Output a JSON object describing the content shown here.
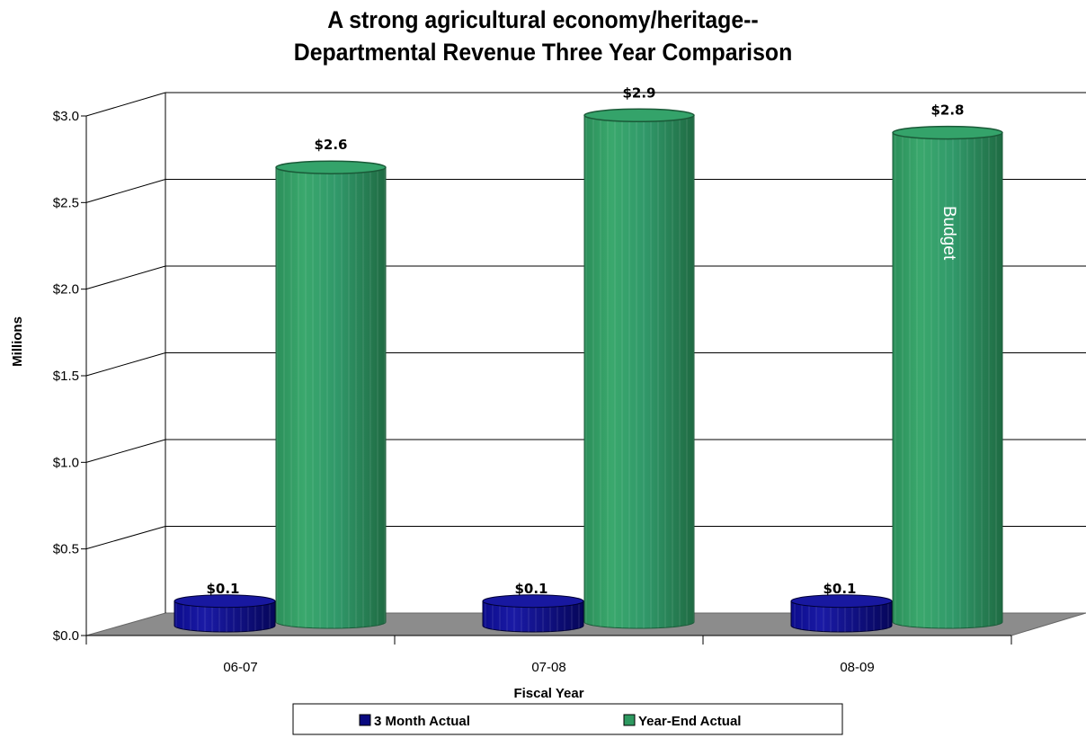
{
  "chart_data": {
    "type": "bar",
    "title_lines": [
      "A strong agricultural economy/heritage--",
      "Departmental Revenue Three Year Comparison"
    ],
    "xlabel": "Fiscal Year",
    "ylabel": "Millions",
    "categories": [
      "06-07",
      "07-08",
      "08-09"
    ],
    "ylim": [
      0,
      3.0
    ],
    "y_ticks": [
      "$0.0",
      "$0.5",
      "$1.0",
      "$1.5",
      "$2.0",
      "$2.5",
      "$3.0"
    ],
    "series": [
      {
        "name": "3 Month Actual",
        "values": [
          0.1,
          0.1,
          0.1
        ],
        "data_labels": [
          "$0.1",
          "$0.1",
          "$0.1"
        ],
        "color": "#0a0a80"
      },
      {
        "name": "Year-End Actual",
        "values": [
          2.6,
          2.9,
          2.8
        ],
        "data_labels": [
          "$2.6",
          "$2.9",
          "$2.8"
        ],
        "color": "#2e9960"
      }
    ],
    "annotation": "Budget",
    "grid": true,
    "legend_position": "bottom"
  }
}
